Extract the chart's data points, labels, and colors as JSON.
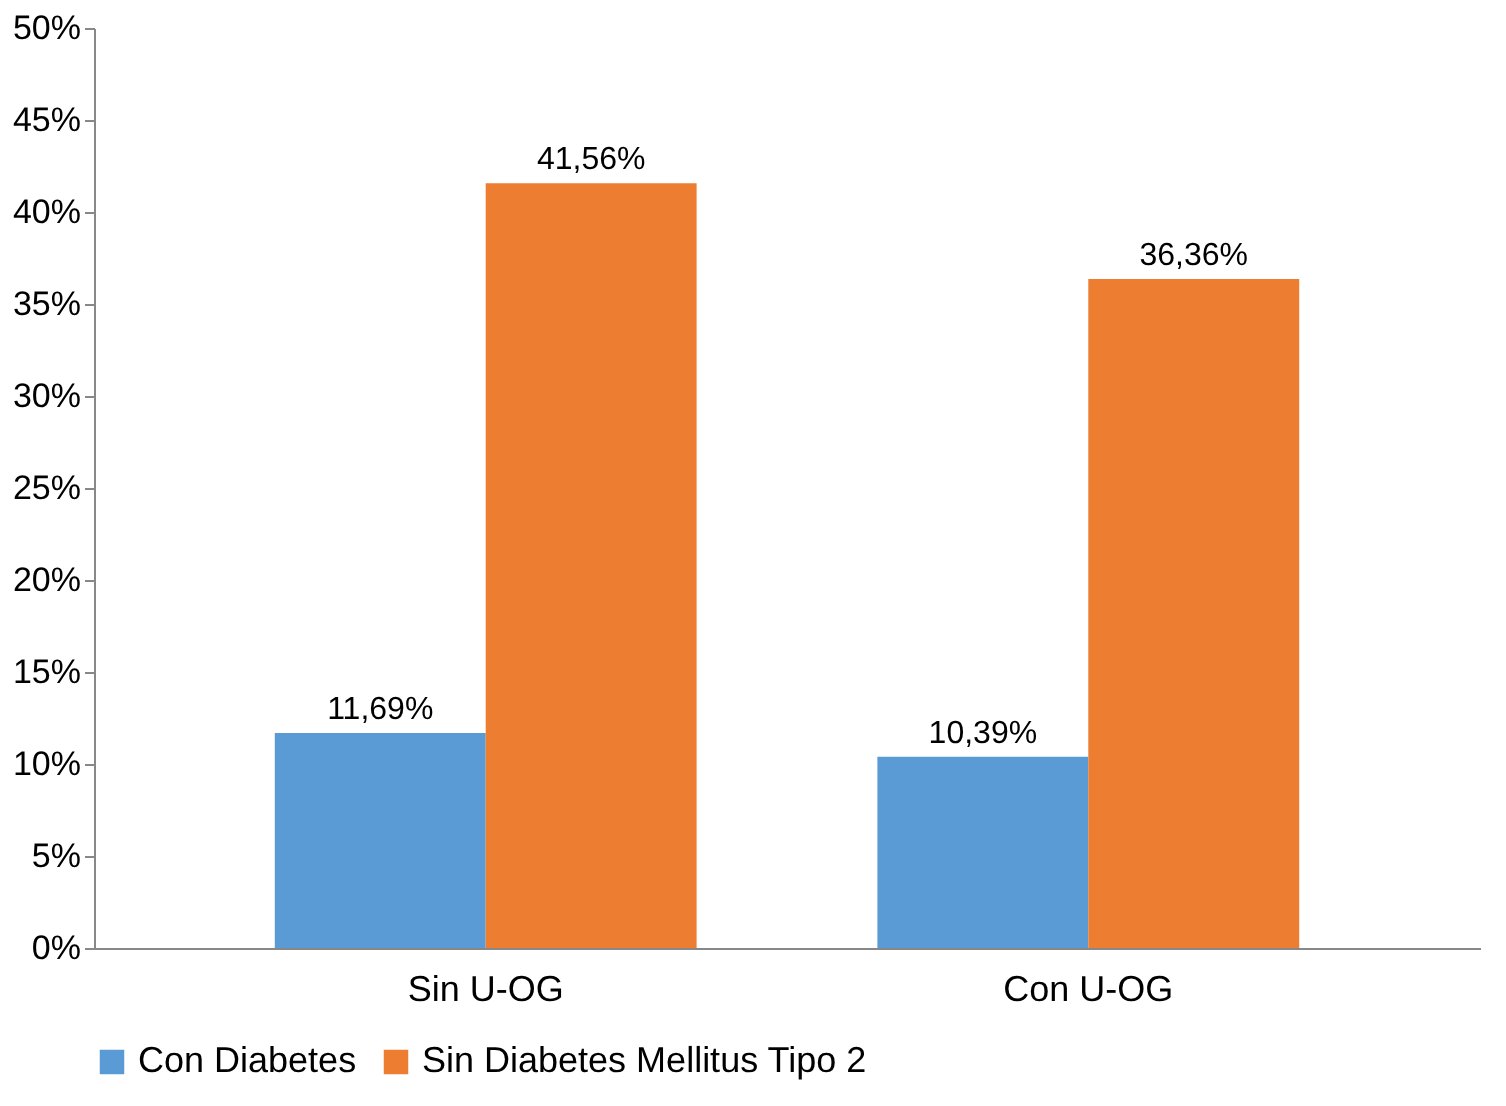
{
  "chart_data": {
    "type": "bar",
    "categories": [
      "Sin U-OG",
      "Con U-OG"
    ],
    "series": [
      {
        "name": "Con Diabetes",
        "color": "#5b9bd5",
        "values": [
          11.69,
          10.39
        ],
        "value_labels": [
          "11,69%",
          "10,39%"
        ]
      },
      {
        "name": "Sin Diabetes Mellitus Tipo 2",
        "color": "#ed7d31",
        "values": [
          41.56,
          36.36
        ],
        "value_labels": [
          "41,56%",
          "36,36%"
        ]
      }
    ],
    "ylim": [
      0,
      50
    ],
    "yticks": [
      {
        "value": 0,
        "label": "0%"
      },
      {
        "value": 5,
        "label": "5%"
      },
      {
        "value": 10,
        "label": "10%"
      },
      {
        "value": 15,
        "label": "15%"
      },
      {
        "value": 20,
        "label": "20%"
      },
      {
        "value": 25,
        "label": "25%"
      },
      {
        "value": 30,
        "label": "30%"
      },
      {
        "value": 35,
        "label": "35%"
      },
      {
        "value": 40,
        "label": "40%"
      },
      {
        "value": 45,
        "label": "45%"
      },
      {
        "value": 50,
        "label": "50%"
      }
    ],
    "grid": false,
    "legend": "bottom"
  }
}
